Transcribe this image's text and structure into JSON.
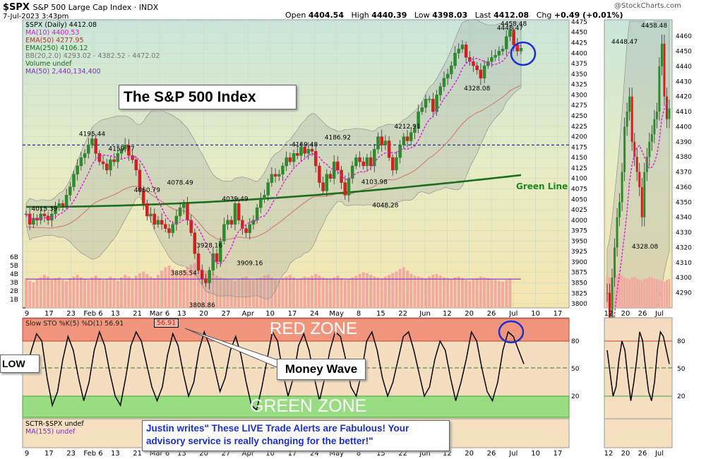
{
  "header": {
    "symbol": "$SPX",
    "name": "S&P 500 Large Cap Index",
    "exchange": "INDX",
    "date": "7-Jul-2023 3:43pm",
    "open_label": "Open",
    "open": "4404.54",
    "high_label": "High",
    "high": "4440.39",
    "low_label": "Low",
    "low": "4398.03",
    "last_label": "Last",
    "last": "4412.08",
    "chg_label": "Chg",
    "chg": "+0.49 (+0.01%)",
    "logo": "@StockCharts.com"
  },
  "legend": {
    "l1": "$SPX (Daily) 4412.08",
    "l2": "MA(10) 4400.53",
    "l3": "EMA(50) 4277.95",
    "l4": "EMA(250) 4106.12",
    "l5": "BB(20,2.0) 4293.02 - 4382.52 - 4472.02",
    "l6": "Volume undef",
    "l7": "MA(50) 2,440,134,400"
  },
  "sto_legend": "Slow STO %K(5) %D(1) 56.91",
  "sto_value_box": "56.91",
  "sctr_legend": {
    "l1": "SCTR-$SPX undef",
    "l2": "MA(155) undef"
  },
  "callouts": {
    "title": "The S&P 500 Index",
    "money_wave": "Money Wave",
    "low": "LOW",
    "red_zone": "RED ZONE",
    "green_zone": "GREEN ZONE",
    "green_line": "Green Line",
    "quote_l1": "Justin writes\" These LIVE Trade Alerts are Fabulous! Your",
    "quote_l2": "advisory service is really changing for the better!\""
  },
  "colors": {
    "price_bg": "#e9eecb",
    "up": "#2d8a2d",
    "down": "#d02020",
    "ma10": "#e020e0",
    "ema50": "#d08080",
    "ema250": "#1c6e1c",
    "bb": "#9a9a9a",
    "volume": "#f2aaa0",
    "red_zone": "#f08a70",
    "green_zone": "#88dd77",
    "callout_text": "#1a2fd0",
    "dashed_line": "#1a2fa8"
  },
  "chart_data": [
    {
      "type": "candlestick",
      "title": "$SPX (Daily) 4412.08",
      "ylim": [
        3790,
        4480
      ],
      "yticks": [
        3800,
        3825,
        3850,
        3875,
        3900,
        3925,
        3950,
        3975,
        4000,
        4025,
        4050,
        4075,
        4100,
        4125,
        4150,
        4175,
        4200,
        4225,
        4250,
        4275,
        4300,
        4325,
        4350,
        4375,
        4400,
        4425,
        4450,
        4475
      ],
      "x_ticks": [
        "9",
        "17",
        "23",
        "Feb 6",
        "13",
        "21",
        "Mar 6",
        "13",
        "20",
        "27",
        "Apr",
        "10",
        "17",
        "24",
        "May",
        "8",
        "15",
        "22",
        "Jun",
        "12",
        "20",
        "26",
        "Jul",
        "10",
        "17"
      ],
      "price_path": [
        4015,
        3990,
        4005,
        4000,
        4015,
        4010,
        4000,
        4015,
        4030,
        4040,
        4035,
        4060,
        4080,
        4110,
        4130,
        4150,
        4160,
        4180,
        4195,
        4160,
        4140,
        4135,
        4120,
        4145,
        4140,
        4160,
        4170,
        4180,
        4155,
        4145,
        4120,
        4070,
        4040,
        4010,
        4015,
        3990,
        4000,
        3990,
        3980,
        3970,
        3990,
        4010,
        4030,
        4040,
        4000,
        3970,
        3920,
        3880,
        3860,
        3850,
        3880,
        3920,
        3900,
        3950,
        3990,
        4000,
        3990,
        4040,
        4000,
        3980,
        3970,
        3990,
        4000,
        4030,
        4050,
        4060,
        4090,
        4110,
        4105,
        4110,
        4130,
        4150,
        4140,
        4160,
        4155,
        4175,
        4160,
        4170,
        4165,
        4130,
        4090,
        4070,
        4110,
        4100,
        4140,
        4120,
        4090,
        4060,
        4100,
        4130,
        4150,
        4140,
        4130,
        4150,
        4130,
        4170,
        4200,
        4180,
        4190,
        4150,
        4120,
        4150,
        4180,
        4200,
        4190,
        4210,
        4220,
        4260,
        4270,
        4290,
        4290,
        4260,
        4300,
        4320,
        4340,
        4350,
        4370,
        4400,
        4410,
        4420,
        4390,
        4380,
        4370,
        4360,
        4340,
        4370,
        4380,
        4390,
        4395,
        4405,
        4410,
        4440,
        4455,
        4420,
        4405,
        4412
      ],
      "volume_path": [
        3500,
        3200,
        3000,
        3400,
        3600,
        3900,
        3700,
        3400,
        3500,
        3600,
        3300,
        3200,
        3500,
        3700,
        3900,
        3600,
        3400,
        3300,
        3600,
        3800,
        3500,
        3300,
        3400,
        3700,
        3500,
        3200,
        3600,
        3900,
        3700,
        3400,
        3800,
        4100,
        4300,
        4000,
        3700,
        3500,
        3900,
        4400,
        4800,
        5000,
        4600,
        4200,
        3900,
        4500,
        4800,
        5100,
        5300,
        4900,
        4600,
        4400,
        4200,
        4000,
        3800,
        3600,
        3500,
        3400,
        3300,
        3200,
        3400,
        3600,
        3700,
        3400,
        3300,
        3500,
        3600,
        3800,
        3900,
        3600,
        3400,
        3300,
        3500,
        3700,
        3900,
        3600,
        3400,
        3500,
        3700,
        3600,
        3800,
        4000,
        3800,
        3600,
        3500,
        3400,
        3600,
        3800,
        3500,
        3300,
        3400,
        3600,
        3800,
        4000,
        4200,
        4100,
        3900,
        3700,
        3600,
        3500,
        3700,
        3900,
        4100,
        4300,
        4600,
        4800,
        4400,
        4000,
        3800,
        3700,
        3600,
        3500,
        3700,
        3900,
        4000,
        3800,
        3600,
        3500,
        3400,
        3600,
        3700,
        3500,
        3300,
        3200,
        3400,
        3500,
        3700,
        3600,
        3500,
        3400,
        3300,
        3200,
        3100,
        3300,
        3400
      ],
      "annotations": [
        "4015.39",
        "4195.44",
        "4159.77",
        "4060.79",
        "4078.49",
        "3928.16",
        "3808.86",
        "4039.49",
        "3909.16",
        "3885.54",
        "4169.48",
        "4186.92",
        "4048.28",
        "4212.91",
        "4103.98",
        "4448.47",
        "4458.48",
        "4328.08"
      ],
      "volume_axis_labels": [
        "6B",
        "5B",
        "4B",
        "3B",
        "2B",
        "1B"
      ],
      "ema250_start": 4032,
      "ema250_end": 4108,
      "dashed_level": 4180
    },
    {
      "type": "line",
      "title": "Slow STO %K(5) %D(1) 56.91",
      "ylim": [
        0,
        100
      ],
      "yticks": [
        20,
        50,
        80
      ],
      "values": [
        48,
        70,
        88,
        80,
        40,
        10,
        25,
        60,
        85,
        70,
        40,
        15,
        35,
        70,
        90,
        75,
        45,
        20,
        10,
        40,
        75,
        90,
        80,
        55,
        30,
        15,
        30,
        65,
        88,
        75,
        45,
        20,
        35,
        70,
        90,
        75,
        50,
        25,
        40,
        70,
        85,
        65,
        35,
        10,
        5,
        30,
        60,
        90,
        80,
        45,
        20,
        40,
        75,
        88,
        70,
        40,
        15,
        40,
        70,
        90,
        85,
        60,
        30,
        20,
        45,
        80,
        90,
        70,
        40,
        20,
        35,
        60,
        85,
        90,
        70,
        45,
        20,
        30,
        60,
        80,
        70,
        40,
        15,
        35,
        60,
        90,
        80,
        50,
        25,
        15,
        35,
        70,
        90,
        85,
        70,
        55
      ]
    }
  ]
}
